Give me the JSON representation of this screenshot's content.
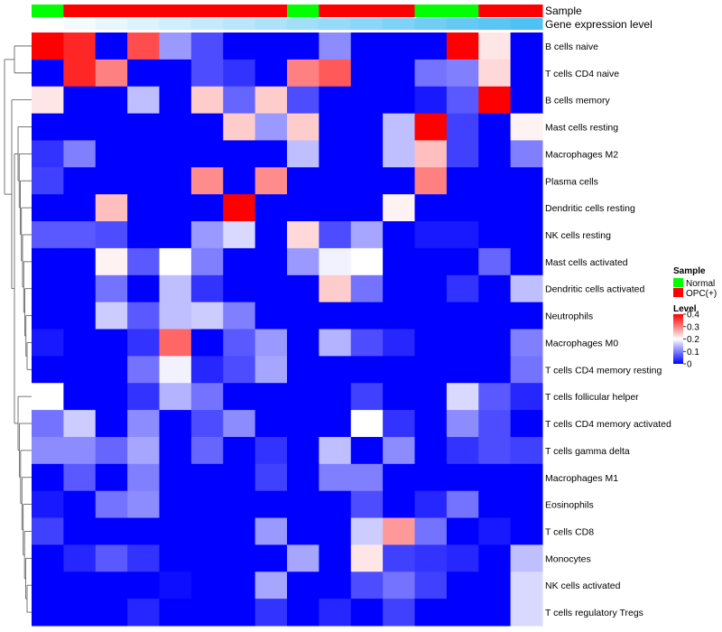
{
  "chart_data": {
    "type": "heatmap",
    "annotation_tracks": [
      "Sample",
      "Gene expression level"
    ],
    "sample_annotation": [
      "Normal",
      "OPC(+)",
      "OPC(+)",
      "OPC(+)",
      "OPC(+)",
      "OPC(+)",
      "OPC(+)",
      "OPC(+)",
      "Normal",
      "OPC(+)",
      "OPC(+)",
      "OPC(+)",
      "Normal",
      "Normal",
      "OPC(+)",
      "OPC(+)"
    ],
    "expression_annotation": [
      0.0,
      0.05,
      0.1,
      0.15,
      0.2,
      0.25,
      0.3,
      0.35,
      0.4,
      0.45,
      0.5,
      0.55,
      0.6,
      0.65,
      0.7,
      0.75
    ],
    "rows": [
      "B cells naive",
      "T cells CD4 naive",
      "B cells memory",
      "Mast cells resting",
      "Macrophages M2",
      "Plasma cells",
      "Dendritic cells resting",
      "NK cells resting",
      "Mast cells activated",
      "Dendritic cells activated",
      "Neutrophils",
      "Macrophages M0",
      "T cells CD4 memory resting",
      "T cells follicular helper",
      "T cells CD4 memory activated",
      "T cells gamma delta",
      "Macrophages M1",
      "Eosinophils",
      "T cells CD8",
      "Monocytes",
      "NK cells activated",
      "T cells regulatory  Tregs"
    ],
    "values": [
      [
        0.4,
        0.37,
        0.0,
        0.34,
        0.12,
        0.06,
        0.0,
        0.0,
        0.0,
        0.11,
        0.0,
        0.0,
        0.0,
        0.4,
        0.22,
        0.0
      ],
      [
        0.0,
        0.37,
        0.3,
        0.0,
        0.0,
        0.06,
        0.04,
        0.0,
        0.3,
        0.33,
        0.0,
        0.0,
        0.09,
        0.1,
        0.23,
        0.0
      ],
      [
        0.22,
        0.0,
        0.0,
        0.15,
        0.0,
        0.24,
        0.08,
        0.24,
        0.06,
        0.0,
        0.0,
        0.0,
        0.02,
        0.07,
        0.4,
        0.0
      ],
      [
        0.0,
        0.0,
        0.0,
        0.0,
        0.0,
        0.0,
        0.24,
        0.12,
        0.24,
        0.0,
        0.0,
        0.15,
        0.4,
        0.05,
        0.0,
        0.21
      ],
      [
        0.04,
        0.1,
        0.0,
        0.0,
        0.0,
        0.0,
        0.0,
        0.0,
        0.15,
        0.0,
        0.0,
        0.15,
        0.25,
        0.05,
        0.0,
        0.1
      ],
      [
        0.05,
        0.0,
        0.0,
        0.0,
        0.0,
        0.29,
        0.0,
        0.29,
        0.0,
        0.0,
        0.0,
        0.0,
        0.3,
        0.0,
        0.0,
        0.0
      ],
      [
        0.0,
        0.0,
        0.25,
        0.0,
        0.0,
        0.0,
        0.4,
        0.0,
        0.0,
        0.0,
        0.0,
        0.21,
        0.0,
        0.0,
        0.0,
        0.0
      ],
      [
        0.07,
        0.07,
        0.06,
        0.0,
        0.0,
        0.12,
        0.17,
        0.0,
        0.23,
        0.06,
        0.13,
        0.0,
        0.02,
        0.02,
        0.0,
        0.0
      ],
      [
        0.0,
        0.0,
        0.21,
        0.07,
        0.2,
        0.1,
        0.0,
        0.0,
        0.12,
        0.19,
        0.2,
        0.0,
        0.0,
        0.0,
        0.08,
        0.0
      ],
      [
        0.0,
        0.0,
        0.09,
        0.0,
        0.15,
        0.04,
        0.0,
        0.0,
        0.0,
        0.24,
        0.09,
        0.0,
        0.0,
        0.04,
        0.0,
        0.15
      ],
      [
        0.0,
        0.0,
        0.16,
        0.07,
        0.15,
        0.16,
        0.1,
        0.0,
        0.0,
        0.0,
        0.0,
        0.0,
        0.0,
        0.0,
        0.0,
        0.0
      ],
      [
        0.02,
        0.0,
        0.0,
        0.04,
        0.32,
        0.0,
        0.07,
        0.12,
        0.0,
        0.14,
        0.06,
        0.03,
        0.0,
        0.0,
        0.0,
        0.1
      ],
      [
        0.0,
        0.0,
        0.0,
        0.09,
        0.19,
        0.03,
        0.06,
        0.13,
        0.0,
        0.0,
        0.0,
        0.0,
        0.0,
        0.0,
        0.0,
        0.09
      ],
      [
        0.2,
        0.0,
        0.0,
        0.04,
        0.14,
        0.09,
        0.0,
        0.0,
        0.0,
        0.0,
        0.05,
        0.0,
        0.0,
        0.17,
        0.07,
        0.03
      ],
      [
        0.09,
        0.16,
        0.0,
        0.11,
        0.0,
        0.06,
        0.11,
        0.0,
        0.0,
        0.0,
        0.2,
        0.04,
        0.0,
        0.11,
        0.06,
        0.0
      ],
      [
        0.11,
        0.11,
        0.08,
        0.13,
        0.0,
        0.08,
        0.0,
        0.04,
        0.0,
        0.15,
        0.0,
        0.11,
        0.0,
        0.04,
        0.06,
        0.05
      ],
      [
        0.0,
        0.07,
        0.0,
        0.1,
        0.0,
        0.0,
        0.0,
        0.05,
        0.0,
        0.1,
        0.1,
        0.0,
        0.0,
        0.0,
        0.0,
        0.0
      ],
      [
        0.02,
        0.0,
        0.09,
        0.11,
        0.0,
        0.0,
        0.0,
        0.0,
        0.0,
        0.0,
        0.06,
        0.0,
        0.03,
        0.09,
        0.0,
        0.0
      ],
      [
        0.05,
        0.0,
        0.0,
        0.0,
        0.0,
        0.0,
        0.0,
        0.12,
        0.0,
        0.0,
        0.16,
        0.28,
        0.09,
        0.0,
        0.02,
        0.0
      ],
      [
        0.0,
        0.03,
        0.07,
        0.04,
        0.0,
        0.0,
        0.0,
        0.0,
        0.13,
        0.0,
        0.22,
        0.05,
        0.04,
        0.03,
        0.0,
        0.15
      ],
      [
        0.0,
        0.0,
        0.0,
        0.0,
        0.01,
        0.0,
        0.0,
        0.13,
        0.0,
        0.0,
        0.06,
        0.09,
        0.05,
        0.0,
        0.0,
        0.17
      ],
      [
        0.0,
        0.0,
        0.0,
        0.03,
        0.0,
        0.0,
        0.0,
        0.04,
        0.0,
        0.03,
        0.0,
        0.05,
        0.0,
        0.0,
        0.0,
        0.17
      ]
    ],
    "color_scale": {
      "low": "#0000ff",
      "mid": "#ffffff",
      "high": "#ff0000",
      "min": 0,
      "mid_value": 0.2,
      "max": 0.4
    },
    "legend": {
      "sample": {
        "title": "Sample",
        "entries": [
          {
            "label": "Normal",
            "color": "#00ff00"
          },
          {
            "label": "OPC(+)",
            "color": "#ff0000"
          }
        ]
      },
      "level": {
        "title": "Level",
        "ticks": [
          "0.4",
          "0.3",
          "0.2",
          "0.1",
          "0"
        ],
        "tick_values": [
          0.4,
          0.3,
          0.2,
          0.1,
          0
        ]
      }
    },
    "expression_colors": {
      "low": "#ffffff",
      "high": "#4fc1f2"
    },
    "row_dendrogram": true,
    "legend_position": "right"
  }
}
